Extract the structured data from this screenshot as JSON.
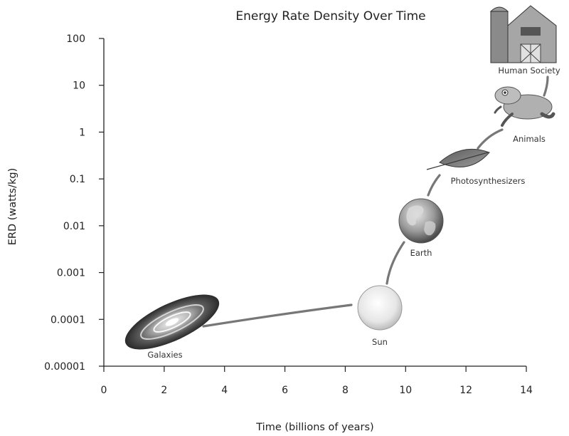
{
  "chart_data": {
    "type": "scatter",
    "title": "Energy Rate Density Over Time",
    "xlabel": "Time (billions of years)",
    "ylabel": "ERD (watts/kg)",
    "xlim": [
      0,
      14
    ],
    "ylim": [
      1e-05,
      100
    ],
    "y_scale": "log",
    "grid": false,
    "x_ticks": [
      {
        "value": 0,
        "label": "0"
      },
      {
        "value": 2,
        "label": "2"
      },
      {
        "value": 4,
        "label": "4"
      },
      {
        "value": 6,
        "label": "6"
      },
      {
        "value": 8,
        "label": "8"
      },
      {
        "value": 10,
        "label": "10"
      },
      {
        "value": 12,
        "label": "12"
      },
      {
        "value": 14,
        "label": "14"
      }
    ],
    "y_ticks": [
      {
        "value": 1e-05,
        "label": "0.00001"
      },
      {
        "value": 0.0001,
        "label": "0.0001"
      },
      {
        "value": 0.001,
        "label": "0.001"
      },
      {
        "value": 0.01,
        "label": "0.01"
      },
      {
        "value": 0.1,
        "label": "0.1"
      },
      {
        "value": 1,
        "label": "1"
      },
      {
        "value": 10,
        "label": "10"
      },
      {
        "value": 100,
        "label": "100"
      }
    ],
    "points": [
      {
        "label": "Galaxies",
        "x": 2,
        "y": 5e-05,
        "icon": "galaxy-icon"
      },
      {
        "label": "Sun",
        "x": 9.3,
        "y": 0.0002,
        "icon": "sun-icon"
      },
      {
        "label": "Earth",
        "x": 10.5,
        "y": 0.01,
        "icon": "earth-icon"
      },
      {
        "label": "Photosynthesizers",
        "x": 11.5,
        "y": 0.2,
        "icon": "leaf-icon"
      },
      {
        "label": "Animals",
        "x": 12.8,
        "y": 2,
        "icon": "frog-icon"
      },
      {
        "label": "Human Society",
        "x": 13.4,
        "y": 50,
        "icon": "barn-icon"
      }
    ]
  }
}
